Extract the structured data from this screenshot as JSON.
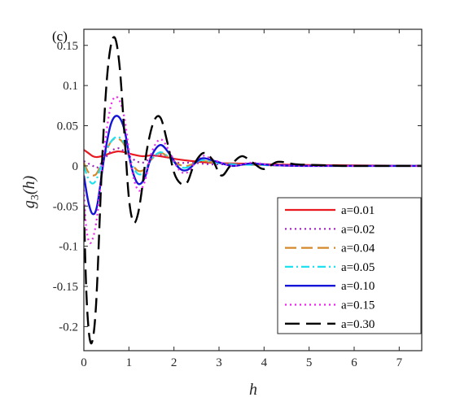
{
  "chart_data": {
    "type": "line",
    "panel_label": "(c)",
    "xlabel": "h",
    "ylabel_main": "g",
    "ylabel_sub": "3",
    "ylabel_arg": "(h)",
    "xlim": [
      0,
      7.5
    ],
    "ylim": [
      -0.23,
      0.17
    ],
    "x_ticks": [
      0,
      1,
      2,
      3,
      4,
      5,
      6,
      7
    ],
    "x_tick_labels": [
      "0",
      "1",
      "2",
      "3",
      "4",
      "5",
      "6",
      "7"
    ],
    "y_ticks": [
      0.15,
      0.1,
      0.05,
      0,
      -0.05,
      -0.1,
      -0.15,
      -0.2
    ],
    "y_tick_labels": [
      "0.15",
      "0.1",
      "0.05",
      "0",
      "-0.05",
      "-0.1",
      "-0.15",
      "-0.2"
    ],
    "grid": false,
    "legend_position": "lower-right",
    "series": [
      {
        "name": "a=0.01",
        "color": "#e8191f",
        "dash": "solid",
        "width": 2.2,
        "x": [
          0,
          0.1,
          0.2,
          0.3,
          0.45,
          0.6,
          0.75,
          0.9,
          1.1,
          1.3,
          1.5,
          1.7,
          1.9,
          2.1,
          2.4,
          2.8,
          3.3,
          4,
          5,
          7.5
        ],
        "y": [
          0.02,
          0.016,
          0.012,
          0.011,
          0.013,
          0.016,
          0.018,
          0.017,
          0.014,
          0.012,
          0.013,
          0.012,
          0.01,
          0.008,
          0.006,
          0.004,
          0.003,
          0.002,
          0.001,
          0
        ]
      },
      {
        "name": "a=0.02",
        "color": "#a020c0",
        "dash": "dot",
        "width": 2.2,
        "x": [
          0,
          0.1,
          0.2,
          0.3,
          0.45,
          0.6,
          0.75,
          0.9,
          1.1,
          1.3,
          1.5,
          1.7,
          1.9,
          2.1,
          2.4,
          2.8,
          3.3,
          4,
          5,
          7.5
        ],
        "y": [
          0.006,
          0.003,
          0.0,
          -0.002,
          0.008,
          0.018,
          0.022,
          0.018,
          0.008,
          0.004,
          0.01,
          0.014,
          0.01,
          0.004,
          0.004,
          0.002,
          0.002,
          0.001,
          0.0,
          0
        ]
      },
      {
        "name": "a=0.04",
        "color": "#d4882a",
        "dash": "longdash",
        "width": 2.2,
        "x": [
          0,
          0.1,
          0.2,
          0.3,
          0.45,
          0.6,
          0.75,
          0.9,
          1.05,
          1.2,
          1.35,
          1.5,
          1.7,
          1.9,
          2.1,
          2.3,
          2.6,
          2.9,
          3.3,
          4,
          5,
          7.5
        ],
        "y": [
          0.004,
          -0.008,
          -0.012,
          -0.008,
          0.012,
          0.03,
          0.034,
          0.026,
          0.005,
          -0.006,
          -0.004,
          0.008,
          0.016,
          0.01,
          0.002,
          0.0,
          0.006,
          0.004,
          0.002,
          0.001,
          0.0,
          0
        ]
      },
      {
        "name": "a=0.05",
        "color": "#1ee0ee",
        "dash": "dashdot",
        "width": 2.2,
        "x": [
          0,
          0.1,
          0.2,
          0.3,
          0.45,
          0.6,
          0.75,
          0.9,
          1.05,
          1.2,
          1.35,
          1.5,
          1.7,
          1.9,
          2.1,
          2.3,
          2.6,
          2.9,
          3.3,
          4,
          5,
          7.5
        ],
        "y": [
          0.0,
          -0.016,
          -0.022,
          -0.014,
          0.012,
          0.03,
          0.036,
          0.028,
          0.004,
          -0.01,
          -0.007,
          0.008,
          0.017,
          0.01,
          0.0,
          -0.002,
          0.007,
          0.004,
          0.002,
          0.001,
          0.0,
          0
        ]
      },
      {
        "name": "a=0.10",
        "color": "#1515d8",
        "dash": "solid",
        "width": 2.4,
        "x": [
          0,
          0.1,
          0.2,
          0.3,
          0.45,
          0.6,
          0.75,
          0.9,
          1.05,
          1.2,
          1.35,
          1.5,
          1.7,
          1.9,
          2.1,
          2.3,
          2.6,
          2.9,
          3.3,
          3.7,
          4.2,
          5,
          7.5
        ],
        "y": [
          -0.012,
          -0.045,
          -0.06,
          -0.048,
          0.01,
          0.052,
          0.062,
          0.045,
          0.0,
          -0.022,
          -0.015,
          0.012,
          0.026,
          0.015,
          -0.002,
          -0.005,
          0.009,
          0.006,
          0.0,
          0.003,
          0.001,
          0.0,
          0
        ]
      },
      {
        "name": "a=0.15",
        "color": "#ee22ee",
        "dash": "dot",
        "width": 2.2,
        "x": [
          0,
          0.05,
          0.12,
          0.2,
          0.3,
          0.45,
          0.6,
          0.75,
          0.9,
          1.05,
          1.2,
          1.35,
          1.5,
          1.7,
          1.9,
          2.1,
          2.3,
          2.6,
          2.9,
          3.3,
          3.7,
          4.2,
          5,
          7.5
        ],
        "y": [
          -0.03,
          -0.075,
          -0.095,
          -0.09,
          -0.06,
          0.02,
          0.075,
          0.085,
          0.06,
          0.0,
          -0.03,
          -0.02,
          0.016,
          0.033,
          0.018,
          -0.004,
          -0.008,
          0.012,
          0.007,
          0.0,
          0.004,
          0.001,
          0.0,
          0
        ]
      },
      {
        "name": "a=0.30",
        "color": "#000000",
        "dash": "bigdash",
        "width": 2.4,
        "x": [
          0,
          0.05,
          0.1,
          0.15,
          0.2,
          0.25,
          0.3,
          0.4,
          0.5,
          0.6,
          0.7,
          0.8,
          0.9,
          1.0,
          1.1,
          1.2,
          1.3,
          1.4,
          1.55,
          1.7,
          1.85,
          2.0,
          2.15,
          2.3,
          2.45,
          2.65,
          2.85,
          3.05,
          3.25,
          3.5,
          3.75,
          4.0,
          4.3,
          4.7,
          5.2,
          5.8,
          6.5,
          7.5
        ],
        "y": [
          -0.05,
          -0.15,
          -0.2,
          -0.22,
          -0.215,
          -0.19,
          -0.14,
          0.0,
          0.1,
          0.15,
          0.158,
          0.12,
          0.04,
          -0.04,
          -0.07,
          -0.06,
          -0.025,
          0.02,
          0.055,
          0.06,
          0.03,
          -0.008,
          -0.022,
          -0.02,
          0.002,
          0.016,
          0.008,
          -0.012,
          0.0,
          0.012,
          0.004,
          -0.004,
          0.005,
          0.002,
          0.001,
          0.0,
          0.0,
          0
        ]
      }
    ]
  }
}
